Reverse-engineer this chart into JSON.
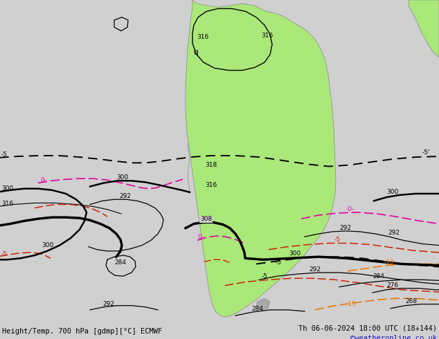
{
  "title_left": "Height/Temp. 700 hPa [gdmp][°C] ECMWF",
  "title_right": "Th 06-06-2024 18:00 UTC (18+144)",
  "credit": "©weatheronline.co.uk",
  "bg_color": "#d0d0d0",
  "land_color": "#aae87a",
  "border_color": "#888888",
  "figsize": [
    6.34,
    4.9
  ],
  "dpi": 100
}
